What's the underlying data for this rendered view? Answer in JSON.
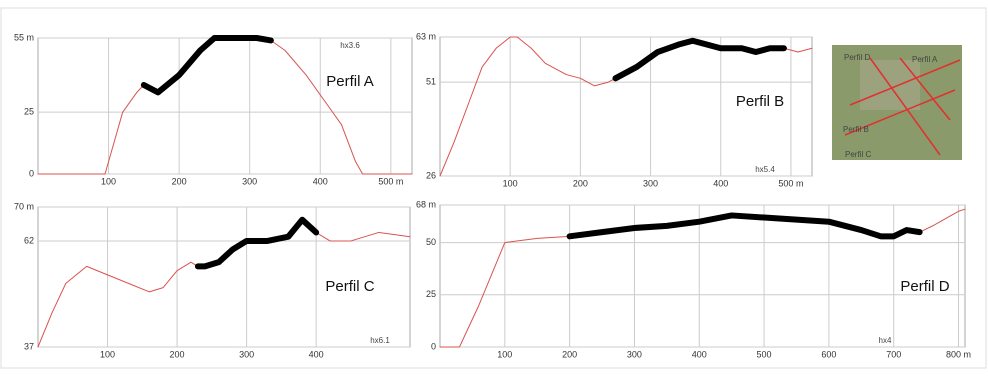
{
  "chart_data": [
    {
      "type": "line",
      "title": "Perfil A",
      "annotation": "hx3.6",
      "xlim": [
        0,
        530
      ],
      "ylim": [
        0,
        55
      ],
      "xticks": [
        100,
        200,
        300,
        400,
        {
          "value": 500,
          "label": "500 m"
        }
      ],
      "yticks": [
        0,
        25,
        {
          "value": 55,
          "label": "55 m"
        }
      ],
      "grid": true,
      "x": [
        0,
        95,
        100,
        120,
        140,
        150,
        170,
        200,
        230,
        250,
        310,
        330,
        350,
        380,
        410,
        430,
        450,
        460,
        530
      ],
      "series": [
        {
          "color": "#d9534f",
          "width": 1,
          "values": [
            0,
            0,
            5,
            25,
            33,
            36,
            33,
            40,
            50,
            55,
            55,
            54,
            50,
            40,
            28,
            20,
            5,
            0,
            0
          ]
        },
        {
          "color": "#000000",
          "width": 6,
          "values": [
            null,
            null,
            null,
            null,
            null,
            36,
            33,
            40,
            50,
            55,
            55,
            54,
            null,
            null,
            null,
            null,
            null,
            null,
            null
          ]
        }
      ]
    },
    {
      "type": "line",
      "title": "Perfil B",
      "annotation": "hx5.4",
      "xlim": [
        0,
        530
      ],
      "ylim": [
        26,
        63
      ],
      "xticks": [
        100,
        200,
        300,
        400,
        {
          "value": 500,
          "label": "500 m"
        }
      ],
      "yticks": [
        26,
        51,
        {
          "value": 63,
          "label": "63 m"
        }
      ],
      "grid": true,
      "x": [
        0,
        20,
        40,
        60,
        80,
        100,
        110,
        130,
        150,
        180,
        200,
        220,
        240,
        250,
        280,
        310,
        340,
        360,
        380,
        400,
        430,
        450,
        470,
        490,
        510,
        530
      ],
      "series": [
        {
          "color": "#d9534f",
          "width": 1,
          "values": [
            26,
            35,
            45,
            55,
            60,
            63,
            63,
            60,
            56,
            53,
            52,
            50,
            51,
            52,
            55,
            59,
            61,
            62,
            61,
            60,
            60,
            59,
            60,
            60,
            59,
            60
          ]
        },
        {
          "color": "#000000",
          "width": 6,
          "values": [
            null,
            null,
            null,
            null,
            null,
            null,
            null,
            null,
            null,
            null,
            null,
            null,
            null,
            52,
            55,
            59,
            61,
            62,
            61,
            60,
            60,
            59,
            60,
            60,
            null,
            null
          ]
        }
      ]
    },
    {
      "type": "line",
      "title": "Perfil C",
      "annotation": "hx6.1",
      "xlim": [
        0,
        535
      ],
      "ylim": [
        37,
        70
      ],
      "xticks": [
        100,
        200,
        300,
        400
      ],
      "yticks": [
        37,
        62,
        {
          "value": 70,
          "label": "70 m"
        }
      ],
      "grid": true,
      "x": [
        0,
        20,
        40,
        70,
        100,
        130,
        160,
        180,
        200,
        220,
        230,
        240,
        260,
        280,
        300,
        330,
        360,
        380,
        400,
        420,
        450,
        490,
        535
      ],
      "series": [
        {
          "color": "#d9534f",
          "width": 1,
          "values": [
            37,
            45,
            52,
            56,
            54,
            52,
            50,
            51,
            55,
            57,
            56,
            56,
            57,
            60,
            62,
            62,
            63,
            67,
            64,
            62,
            62,
            64,
            63
          ]
        },
        {
          "color": "#000000",
          "width": 6,
          "values": [
            null,
            null,
            null,
            null,
            null,
            null,
            null,
            null,
            null,
            null,
            56,
            56,
            57,
            60,
            62,
            62,
            63,
            67,
            64,
            null,
            null,
            null,
            null
          ]
        }
      ]
    },
    {
      "type": "line",
      "title": "Perfil D",
      "annotation": "hx4",
      "xlim": [
        0,
        810
      ],
      "ylim": [
        0,
        68
      ],
      "xticks": [
        100,
        200,
        300,
        400,
        500,
        600,
        700,
        {
          "value": 800,
          "label": "800 m"
        }
      ],
      "yticks": [
        0,
        25,
        50,
        {
          "value": 68,
          "label": "68 m"
        }
      ],
      "grid": true,
      "x": [
        0,
        30,
        60,
        100,
        150,
        200,
        250,
        300,
        350,
        400,
        450,
        500,
        550,
        600,
        650,
        680,
        700,
        720,
        740,
        760,
        800,
        810
      ],
      "series": [
        {
          "color": "#d9534f",
          "width": 1,
          "values": [
            0,
            0,
            20,
            50,
            52,
            53,
            55,
            57,
            58,
            60,
            63,
            62,
            61,
            60,
            56,
            53,
            53,
            56,
            55,
            58,
            65,
            66
          ]
        },
        {
          "color": "#000000",
          "width": 6,
          "values": [
            null,
            null,
            null,
            null,
            null,
            53,
            55,
            57,
            58,
            60,
            63,
            62,
            61,
            60,
            56,
            53,
            53,
            56,
            55,
            null,
            null,
            null
          ]
        }
      ]
    }
  ],
  "map": {
    "labels": [
      "Perfil D",
      "Perfil A",
      "Perfil B",
      "Perfil C"
    ]
  }
}
